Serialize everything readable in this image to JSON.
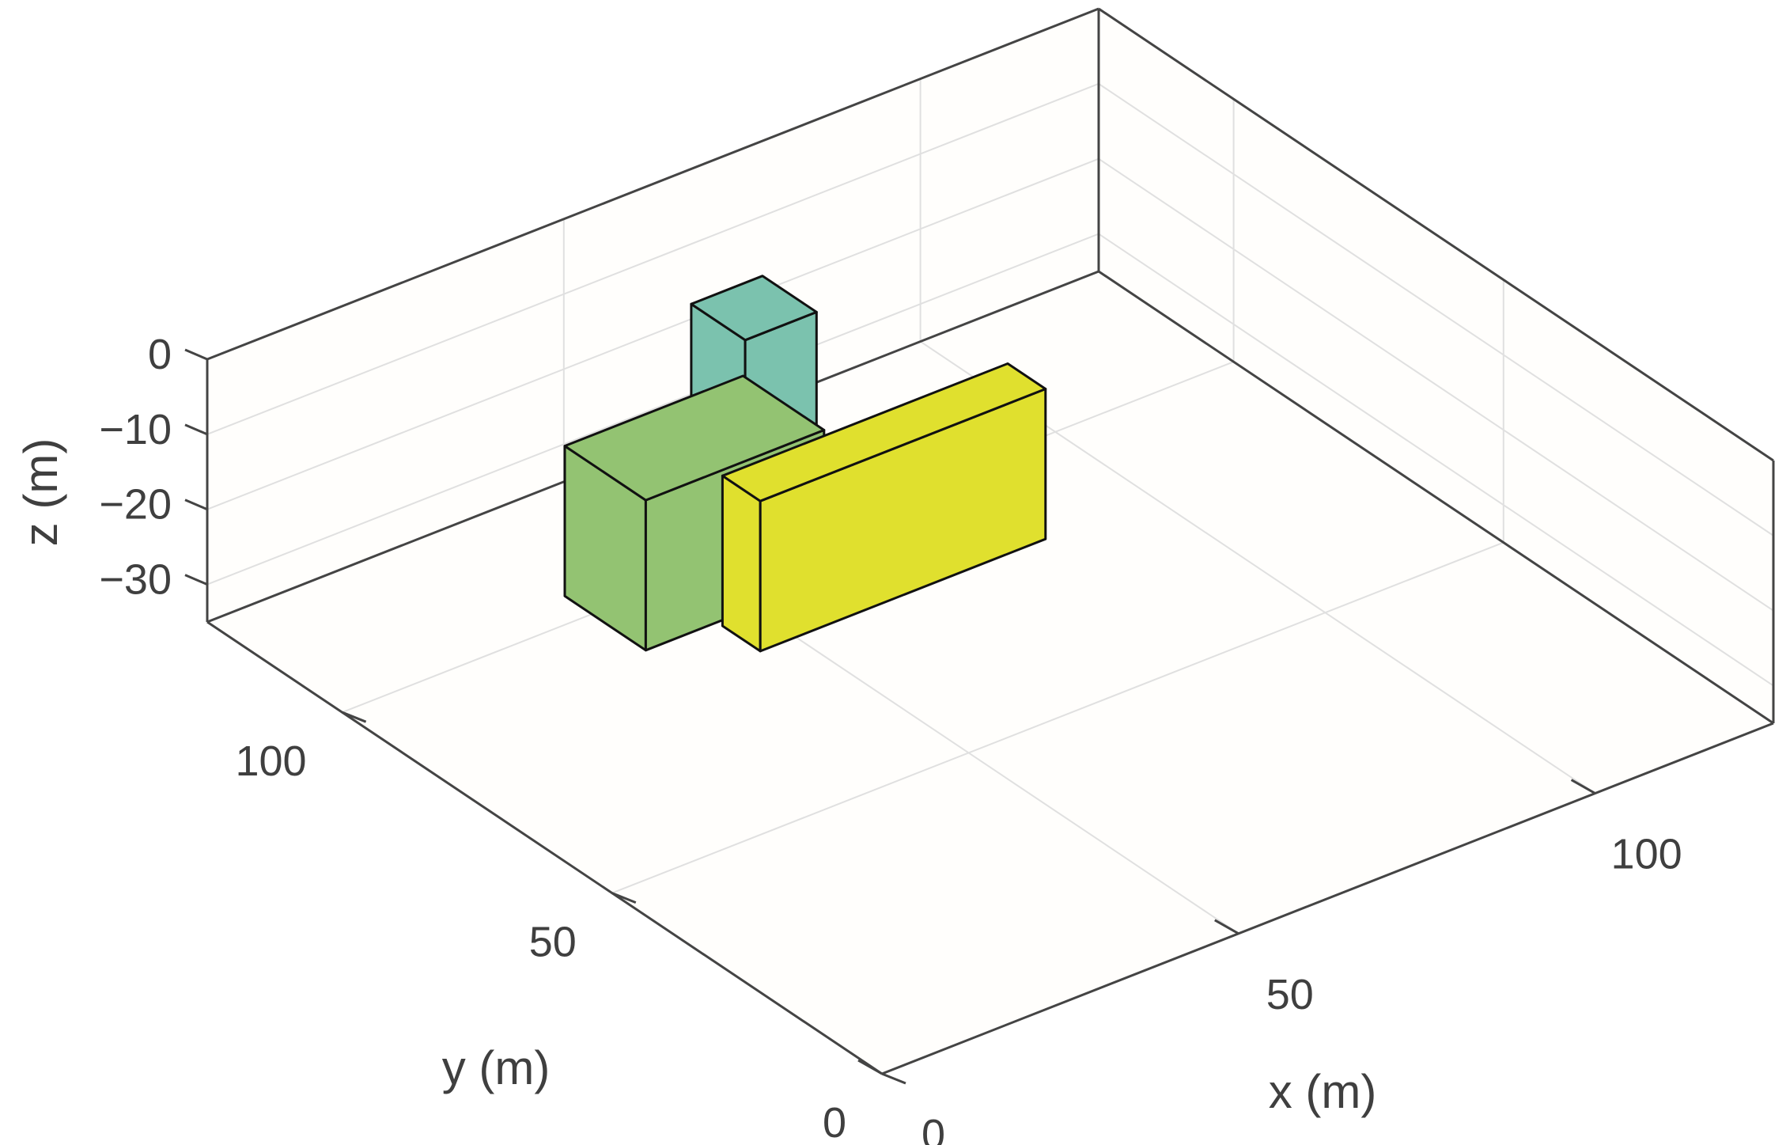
{
  "chart_data": {
    "type": "3d-bar",
    "xlabel": "x (m)",
    "ylabel": "y (m)",
    "zlabel": "z (m)",
    "xlim": [
      0,
      125
    ],
    "ylim": [
      0,
      125
    ],
    "zlim": [
      -35,
      0
    ],
    "x_ticks": [
      0,
      50,
      100
    ],
    "y_ticks": [
      0,
      50,
      100
    ],
    "z_ticks": [
      0,
      -10,
      -20,
      -30
    ],
    "tick_labels": {
      "x": [
        "0",
        "50",
        "100"
      ],
      "y": [
        "0",
        "50",
        "100"
      ],
      "z": [
        "0",
        "−10",
        "−20",
        "−30"
      ]
    },
    "grid": true,
    "boxes": [
      {
        "name": "",
        "color": "#93c372",
        "x": [
          35,
          60
        ],
        "y": [
          90,
          105
        ],
        "z": [
          -35,
          -15
        ]
      },
      {
        "name": "",
        "color": "#7bc2ae",
        "x": [
          55,
          65
        ],
        "y": [
          98,
          108
        ],
        "z": [
          -35,
          -5
        ]
      },
      {
        "name": "",
        "color": "#e0e02e",
        "x": [
          45,
          85
        ],
        "y": [
          82,
          89
        ],
        "z": [
          -35,
          -15
        ]
      }
    ],
    "colors": {
      "background": "#fffefc",
      "box_frame": "#444444",
      "grid": "#e0e0e0",
      "edge": "#111111"
    }
  }
}
